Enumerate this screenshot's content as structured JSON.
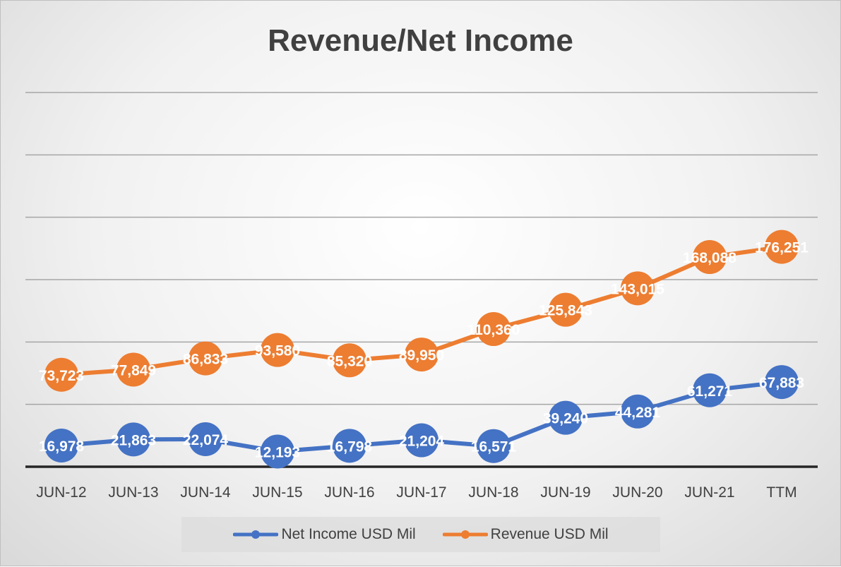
{
  "chart_data": {
    "type": "line",
    "title": "Revenue/Net Income",
    "categories": [
      "JUN-12",
      "JUN-13",
      "JUN-14",
      "JUN-15",
      "JUN-16",
      "JUN-17",
      "JUN-18",
      "JUN-19",
      "JUN-20",
      "JUN-21",
      "TTM"
    ],
    "series": [
      {
        "name": "Net Income USD Mil",
        "color": "#4472c4",
        "values": [
          16978,
          21863,
          22074,
          12193,
          16798,
          21204,
          16571,
          39240,
          44281,
          61271,
          67883
        ],
        "labels": [
          "16,978",
          "21,863",
          "22,074",
          "12,193",
          "16,798",
          "21,204",
          "16,571",
          "39,240",
          "44,281",
          "61,271",
          "67,883"
        ]
      },
      {
        "name": "Revenue USD Mil",
        "color": "#ed7d31",
        "values": [
          73723,
          77849,
          86833,
          93580,
          85320,
          89950,
          110360,
          125843,
          143015,
          168088,
          176251
        ],
        "labels": [
          "73,723",
          "77,849",
          "86,833",
          "93,580",
          "85,320",
          "89,950",
          "110,360",
          "125,843",
          "143,015",
          "168,088",
          "176,251"
        ]
      }
    ],
    "ylim": [
      0,
      300000
    ],
    "y_axis_labels_shown": false,
    "grid": true,
    "legend": "bottom"
  }
}
